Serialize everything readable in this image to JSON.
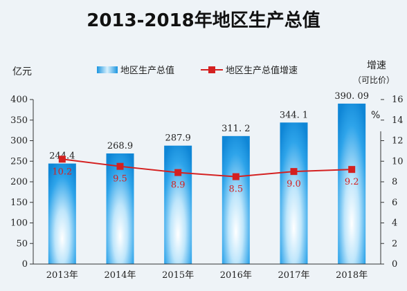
{
  "chart_data": {
    "type": "bar+line",
    "title": "2013-2018年地区生产总值",
    "categories": [
      "2013年",
      "2014年",
      "2015年",
      "2016年",
      "2017年",
      "2018年"
    ],
    "series": [
      {
        "name": "地区生产总值",
        "type": "bar",
        "axis": "left",
        "values": [
          244.4,
          268.9,
          287.9,
          311.2,
          344.1,
          390.09
        ],
        "labels": [
          "244.4",
          "268.9",
          "287.9",
          "311. 2",
          "344. 1",
          "390. 09"
        ]
      },
      {
        "name": "地区生产总值增速",
        "type": "line",
        "axis": "right",
        "values": [
          10.2,
          9.5,
          8.9,
          8.5,
          9.0,
          9.2
        ],
        "labels": [
          "10.2",
          "9.5",
          "8.9",
          "8.5",
          "9.0",
          "9.2"
        ]
      }
    ],
    "left_axis": {
      "unit": "亿元",
      "ylim": [
        0,
        400
      ],
      "ticks": [
        "0",
        "50",
        "100",
        "150",
        "200",
        "250",
        "300",
        "350",
        "400"
      ]
    },
    "right_axis": {
      "label": "增速",
      "sublabel": "（可比价）",
      "unit": "%",
      "ylim": [
        0,
        16
      ],
      "ticks": [
        "0",
        "2",
        "4",
        "6",
        "8",
        "10",
        "12",
        "14",
        "16"
      ]
    },
    "legend_position": "top",
    "grid": false
  },
  "colors": {
    "bar_top": "#0f86d6",
    "bar_edge": "#1c9ae6",
    "bar_center": "#ffffff",
    "line": "#d42020",
    "background": "#eef3f7"
  }
}
